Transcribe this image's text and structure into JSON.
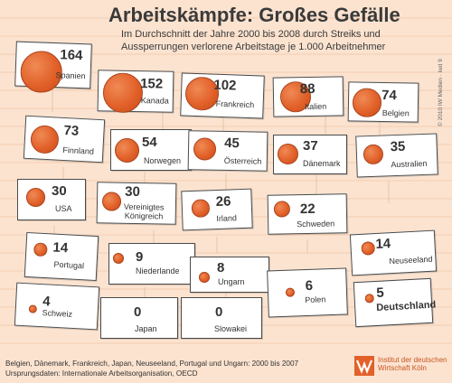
{
  "title": "Arbeitskämpfe: Großes Gefälle",
  "subtitle": "Im Durchschnitt der Jahre 2000 bis 2008 durch Streiks und Aussperrungen verlorene Arbeitstage je 1.000 Arbeitnehmer",
  "copyright": "© 2010 IW Medien · iwd 9",
  "footer_lines": [
    "Belgien, Dänemark, Frankreich, Japan, Neuseeland, Portugal und Ungarn: 2000 bis 2007",
    "Ursprungsdaten: Internationale Arbeitsorganisation, OECD"
  ],
  "logo_lines": [
    "Institut der deutschen",
    "Wirtschaft Köln"
  ],
  "colors": {
    "background": "#fbe3d0",
    "bubble": "#e2612a",
    "logo": "#c8551f"
  },
  "chart_data": {
    "type": "bubble",
    "unit": "verlorene Arbeitstage je 1.000 Arbeitnehmer",
    "categories": [
      "Spanien",
      "Kanada",
      "Frankreich",
      "Italien",
      "Belgien",
      "Finnland",
      "Norwegen",
      "Österreich",
      "Dänemark",
      "Australien",
      "USA",
      "Vereinigtes Königreich",
      "Irland",
      "Schweden",
      "Neuseeland",
      "Portugal",
      "Niederlande",
      "Ungarn",
      "Polen",
      "Schweiz",
      "Japan",
      "Slowakei",
      "Deutschland"
    ],
    "values": [
      164,
      152,
      102,
      88,
      74,
      73,
      54,
      45,
      37,
      35,
      30,
      30,
      26,
      22,
      14,
      14,
      9,
      8,
      6,
      4,
      0,
      0,
      5
    ],
    "highlight": "Deutschland"
  },
  "signs": [
    {
      "value": "164",
      "label": "Spanien"
    },
    {
      "value": "152",
      "label": "Kanada"
    },
    {
      "value": "102",
      "label": "Frankreich"
    },
    {
      "value": "88",
      "label": "Italien"
    },
    {
      "value": "74",
      "label": "Belgien"
    },
    {
      "value": "73",
      "label": "Finnland"
    },
    {
      "value": "54",
      "label": "Norwegen"
    },
    {
      "value": "45",
      "label": "Österreich"
    },
    {
      "value": "37",
      "label": "Dänemark"
    },
    {
      "value": "35",
      "label": "Australien"
    },
    {
      "value": "30",
      "label": "USA"
    },
    {
      "value": "30",
      "label": "Vereinigtes\nKönigreich"
    },
    {
      "value": "26",
      "label": "Irland"
    },
    {
      "value": "22",
      "label": "Schweden"
    },
    {
      "value": "14",
      "label": "Neuseeland"
    },
    {
      "value": "14",
      "label": "Portugal"
    },
    {
      "value": "9",
      "label": "Niederlande"
    },
    {
      "value": "8",
      "label": "Ungarn"
    },
    {
      "value": "6",
      "label": "Polen"
    },
    {
      "value": "4",
      "label": "Schweiz"
    },
    {
      "value": "0",
      "label": "Japan"
    },
    {
      "value": "0",
      "label": "Slowakei"
    },
    {
      "value": "5",
      "label": "Deutschland"
    }
  ]
}
